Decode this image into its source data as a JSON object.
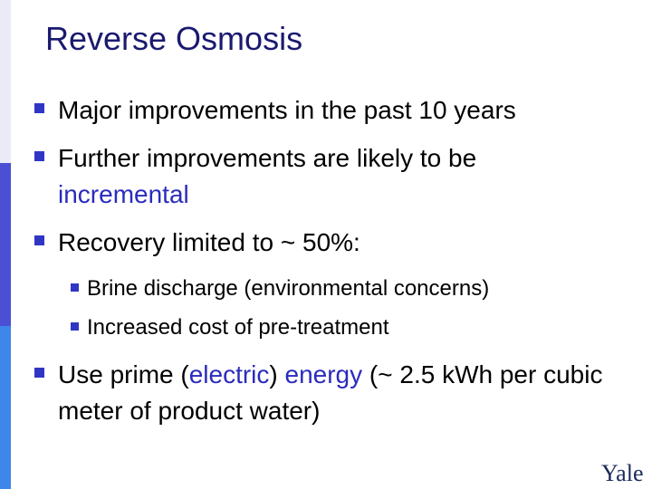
{
  "title": "Reverse Osmosis",
  "bullets": [
    {
      "runs": [
        "Major improvements in the past 10 years"
      ]
    },
    {
      "runs": [
        "Further improvements are likely to be ",
        "incremental"
      ]
    },
    {
      "runs": [
        "Recovery limited to ~ 50%:"
      ],
      "sub_bullets": [
        "Brine discharge (environmental concerns)",
        "Increased cost of pre-treatment"
      ]
    },
    {
      "runs": [
        "Use prime (",
        "electric",
        ") ",
        "energy",
        " (~ 2.5 kWh per cubic meter of product water)"
      ]
    }
  ],
  "footer": {
    "logo": "Yale"
  }
}
